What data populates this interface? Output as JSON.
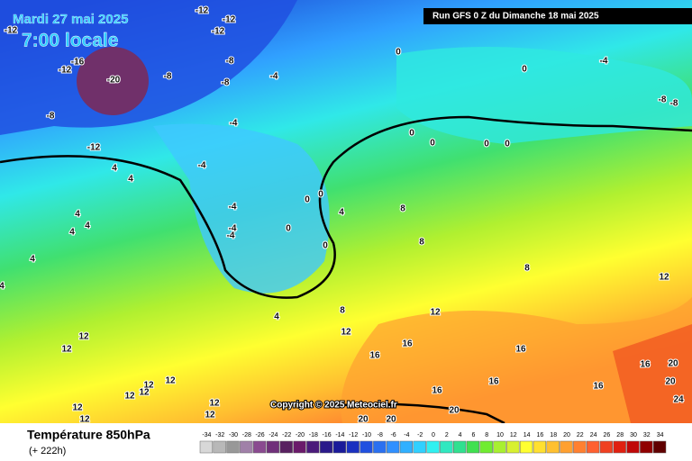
{
  "header": {
    "date": "Mardi 27 mai 2025",
    "time": "7:00 locale",
    "run": "Run GFS 0 Z du Dimanche 18 mai 2025",
    "copyright": "Copyright © 2025 Meteociel.fr"
  },
  "footer": {
    "title": "Température 850hPa",
    "lead": "(+ 222h)"
  },
  "legend": {
    "values": [
      -34,
      -32,
      -30,
      -28,
      -26,
      -24,
      -22,
      -20,
      -18,
      -16,
      -14,
      -12,
      -10,
      -8,
      -6,
      -4,
      -2,
      0,
      2,
      4,
      6,
      8,
      10,
      12,
      14,
      16,
      18,
      20,
      22,
      24,
      26,
      28,
      30,
      32,
      34
    ],
    "colors": [
      "#d8d8d8",
      "#b8b8b8",
      "#989898",
      "#a080a8",
      "#8a4a90",
      "#70307a",
      "#582060",
      "#6a1a6a",
      "#4a1a7a",
      "#2a1a8a",
      "#1a1a9a",
      "#1a30c0",
      "#2050e0",
      "#2a70f0",
      "#3090ff",
      "#30b0ff",
      "#30d0ff",
      "#30f0f0",
      "#30e8c0",
      "#30e090",
      "#40e050",
      "#70ec30",
      "#a8f030",
      "#d8f030",
      "#ffff30",
      "#ffe030",
      "#ffc030",
      "#ffa030",
      "#ff8030",
      "#ff6030",
      "#f04020",
      "#e02010",
      "#c00808",
      "#900000",
      "#600000"
    ]
  },
  "map_labels": [
    "-12",
    "-12",
    "-12",
    "-12",
    "-16",
    "-12",
    "-20",
    "-8",
    "-8",
    "-4",
    "-8",
    "-8",
    "-4",
    "-12",
    "-4",
    "4",
    "4",
    "0",
    "0",
    "-4",
    "-8",
    "-8",
    "0",
    "0",
    "0",
    "0",
    "0",
    "0",
    "-4",
    "-4",
    "-4",
    "0",
    "0",
    "4",
    "8",
    "8",
    "4",
    "4",
    "4",
    "4",
    "8",
    "12",
    "4",
    "12",
    "8",
    "4",
    "12",
    "12",
    "12",
    "16",
    "16",
    "16",
    "16",
    "20",
    "12",
    "12",
    "12",
    "12",
    "16",
    "16",
    "16",
    "20",
    "24",
    "12",
    "12",
    "12",
    "12",
    "20",
    "20",
    "20"
  ]
}
